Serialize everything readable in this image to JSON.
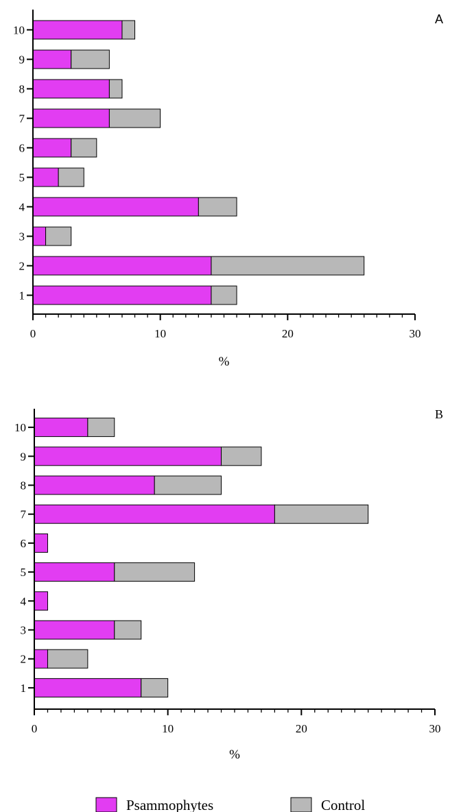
{
  "chart_data": [
    {
      "type": "bar",
      "stacked": true,
      "orientation": "horizontal",
      "panel_label": "A",
      "categories": [
        "1",
        "2",
        "3",
        "4",
        "5",
        "6",
        "7",
        "8",
        "9",
        "10"
      ],
      "series": [
        {
          "name": "Psammophytes",
          "values": [
            14,
            14,
            1,
            13,
            2,
            3,
            6,
            6,
            3,
            7
          ]
        },
        {
          "name": "Control",
          "values": [
            2,
            12,
            2,
            3,
            2,
            2,
            4,
            1,
            3,
            1
          ]
        }
      ],
      "xlabel": "%",
      "ylabel": "",
      "xlim": [
        0,
        30
      ],
      "xticks": [
        "0",
        "10",
        "20",
        "30"
      ],
      "grid": false
    },
    {
      "type": "bar",
      "stacked": true,
      "orientation": "horizontal",
      "panel_label": "B",
      "categories": [
        "1",
        "2",
        "3",
        "4",
        "5",
        "6",
        "7",
        "8",
        "9",
        "10"
      ],
      "series": [
        {
          "name": "Psammophytes",
          "values": [
            8,
            1,
            6,
            1,
            6,
            1,
            18,
            9,
            14,
            4
          ]
        },
        {
          "name": "Control",
          "values": [
            2,
            3,
            2,
            0,
            6,
            0,
            7,
            5,
            3,
            2
          ]
        }
      ],
      "xlabel": "%",
      "ylabel": "",
      "xlim": [
        0,
        30
      ],
      "xticks": [
        "0",
        "10",
        "20",
        "30"
      ],
      "grid": false
    }
  ],
  "legend": {
    "placement": "bottom",
    "items": [
      {
        "label": "Psammophytes",
        "color": "#e23df2"
      },
      {
        "label": "Control",
        "color": "#b8b8b8"
      }
    ]
  },
  "colors": {
    "psammophytes": "#e23df2",
    "control": "#b8b8b8"
  }
}
